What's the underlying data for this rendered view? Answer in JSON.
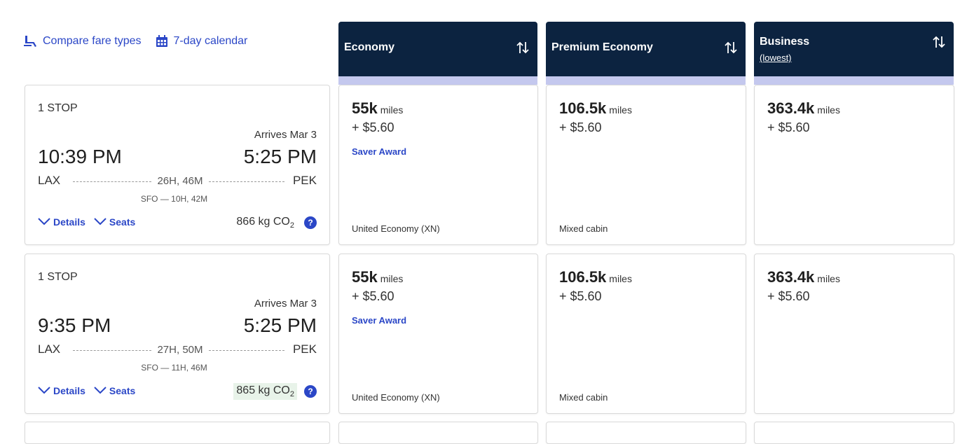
{
  "toolbar": {
    "compare_label": "Compare fare types",
    "calendar_label": "7-day calendar"
  },
  "columns": [
    {
      "title": "Economy",
      "subtitle": ""
    },
    {
      "title": "Premium Economy",
      "subtitle": ""
    },
    {
      "title": "Business",
      "subtitle": "(lowest)"
    }
  ],
  "flights": [
    {
      "stops": "1 STOP",
      "arrives": "Arrives Mar 3",
      "depart_time": "10:39 PM",
      "arrive_time": "5:25 PM",
      "from": "LAX",
      "to": "PEK",
      "duration": "26H, 46M",
      "layover": "SFO — 10H, 42M",
      "details_label": "Details",
      "seats_label": "Seats",
      "co2": "866 kg CO",
      "co2_sub": "2",
      "help": "?",
      "fares": [
        {
          "miles": "55k",
          "unit": "miles",
          "tax": "+ $5.60",
          "badge": "Saver Award",
          "cabin": "United Economy (XN)"
        },
        {
          "miles": "106.5k",
          "unit": "miles",
          "tax": "+ $5.60",
          "badge": "",
          "cabin": "Mixed cabin"
        },
        {
          "miles": "363.4k",
          "unit": "miles",
          "tax": "+ $5.60",
          "badge": "",
          "cabin": ""
        }
      ]
    },
    {
      "stops": "1 STOP",
      "arrives": "Arrives Mar 3",
      "depart_time": "9:35 PM",
      "arrive_time": "5:25 PM",
      "from": "LAX",
      "to": "PEK",
      "duration": "27H, 50M",
      "layover": "SFO — 11H, 46M",
      "details_label": "Details",
      "seats_label": "Seats",
      "co2": "865 kg CO",
      "co2_sub": "2",
      "help": "?",
      "fares": [
        {
          "miles": "55k",
          "unit": "miles",
          "tax": "+ $5.60",
          "badge": "Saver Award",
          "cabin": "United Economy (XN)"
        },
        {
          "miles": "106.5k",
          "unit": "miles",
          "tax": "+ $5.60",
          "badge": "",
          "cabin": "Mixed cabin"
        },
        {
          "miles": "363.4k",
          "unit": "miles",
          "tax": "+ $5.60",
          "badge": "",
          "cabin": ""
        }
      ]
    }
  ],
  "colors": {
    "header_bg": "#0c2340",
    "header_stripe": "#c4c8ee",
    "link": "#2b47c7",
    "co2_highlight": "#e8f3e9"
  }
}
